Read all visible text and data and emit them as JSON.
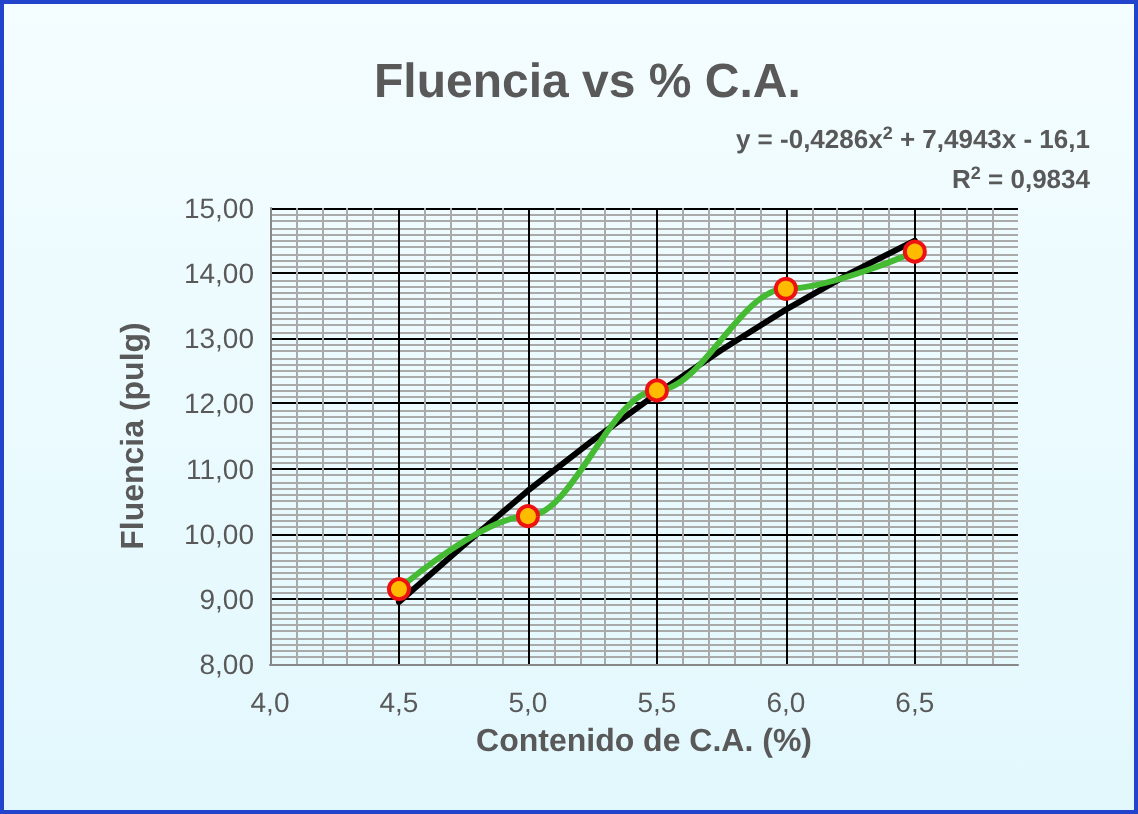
{
  "chart_data": {
    "type": "line",
    "title": "Fluencia vs % C.A.",
    "xlabel": "Contenido de C.A. (%)",
    "ylabel": "Fluencia (pulg)",
    "annotations": [
      "y = -0,4286x$^{2}$ + 7,4943x - 16,1",
      "R$^{2}$ = 0,9834"
    ],
    "x": [
      4.5,
      5.0,
      5.5,
      6.0,
      6.5
    ],
    "series": [
      {
        "color": "#44bb33",
        "values": [
          9.15,
          10.27,
          12.2,
          13.76,
          14.33
        ],
        "marker": "circle",
        "line_style": "solid"
      },
      {
        "type": "line",
        "color": "#000000",
        "x": [
          4.5,
          4.75,
          5.0,
          5.25,
          5.5,
          5.75,
          6.0,
          6.25,
          6.5
        ],
        "values": [
          8.95,
          9.82,
          10.66,
          11.43,
          12.15,
          12.82,
          13.44,
          14.0,
          14.5
        ],
        "marker": "none",
        "line_style": "solid"
      }
    ],
    "xlim": [
      4.0,
      6.9
    ],
    "xticks": [
      {
        "value": 4.0,
        "label": "4,0"
      },
      {
        "value": 4.5,
        "label": "4,5"
      },
      {
        "value": 5.0,
        "label": "5,0"
      },
      {
        "value": 5.5,
        "label": "5,5"
      },
      {
        "value": 6.0,
        "label": "6,0"
      },
      {
        "value": 6.5,
        "label": "6,5"
      }
    ],
    "ylim": [
      8,
      15
    ],
    "yticks": [
      {
        "value": 8,
        "label": "8,00"
      },
      {
        "value": 9,
        "label": "9,00"
      },
      {
        "value": 10,
        "label": "10,00"
      },
      {
        "value": 11,
        "label": "11,00"
      },
      {
        "value": 12,
        "label": "12,00"
      },
      {
        "value": 13,
        "label": "13,00"
      },
      {
        "value": 14,
        "label": "14,00"
      },
      {
        "value": 15,
        "label": "15,00"
      }
    ],
    "grid": true
  }
}
